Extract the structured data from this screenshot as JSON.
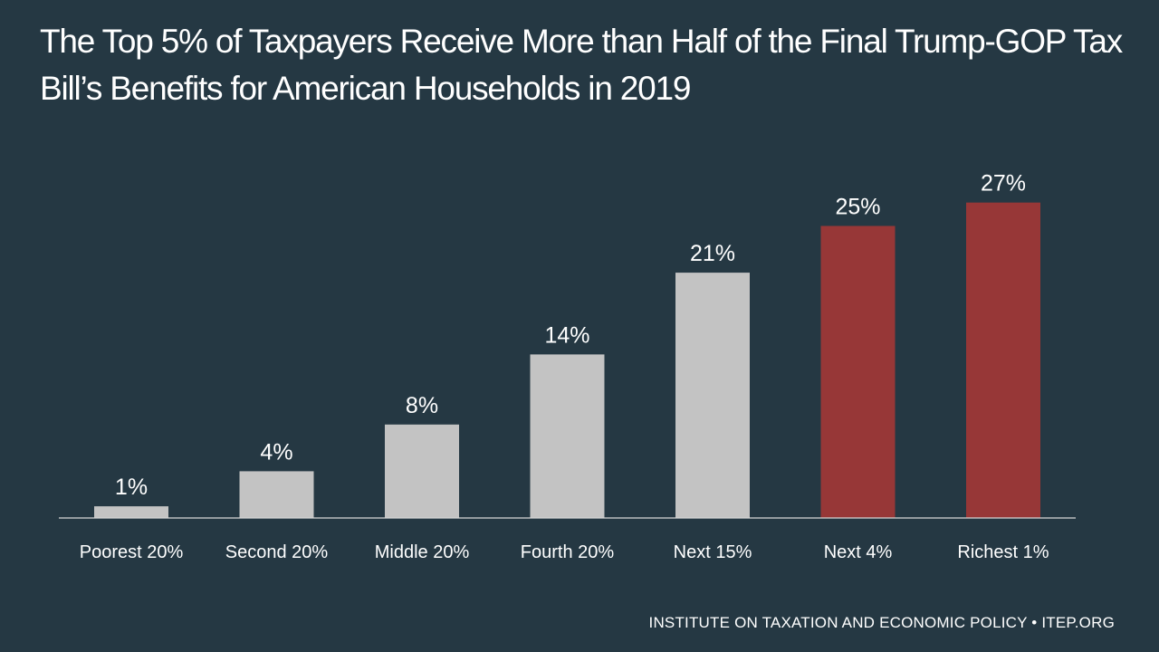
{
  "chart_data": {
    "type": "bar",
    "title": "The Top 5% of Taxpayers Receive More than Half of the Final Trump-GOP Tax Bill’s Benefits for American Households in 2019",
    "categories": [
      "Poorest 20%",
      "Second 20%",
      "Middle 20%",
      "Fourth 20%",
      "Next 15%",
      "Next 4%",
      "Richest 1%"
    ],
    "values": [
      1,
      4,
      8,
      14,
      21,
      25,
      27
    ],
    "value_labels": [
      "1%",
      "4%",
      "8%",
      "14%",
      "21%",
      "25%",
      "27%"
    ],
    "unit": "%",
    "ylim": [
      0,
      30
    ],
    "grid": false,
    "bar_colors": [
      "#c3c3c3",
      "#c3c3c3",
      "#c3c3c3",
      "#c3c3c3",
      "#c3c3c3",
      "#973737",
      "#973737"
    ]
  },
  "colors": {
    "background": "#253843",
    "axis": "#d6d6d6",
    "text": "#ffffff"
  },
  "footer": {
    "text": "INSTITUTE ON TAXATION AND ECONOMIC POLICY • ITEP.ORG"
  }
}
